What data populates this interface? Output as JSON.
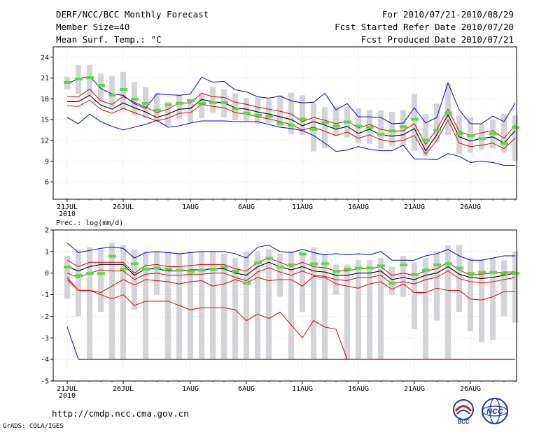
{
  "header": {
    "title": "DERF/NCC/BCC Monthly Forecast",
    "member_size": "Member Size=40",
    "variable": "Mean Surf. Temp.: °C",
    "forecast_period": "For 2010/07/21-2010/08/29",
    "started_date": "Fcst Started Refer Date 2010/07/20",
    "produced_date": "Fcst Produced Date 2010/07/21"
  },
  "footer": {
    "url": "http://cmdp.ncc.cma.gov.cn",
    "credit": "GrADS: COLA/IGES",
    "logo_left_text": "BCC",
    "logo_right_text": "NCC"
  },
  "colors": {
    "box": "#d3d3d8",
    "mean": "#000000",
    "inner_band": "#dd0000",
    "outer_band": "#0000cc",
    "observed": "#55dd44"
  },
  "chart_data": [
    {
      "type": "line",
      "title": "Mean Surf. Temp.: °C",
      "ylim": [
        3.5,
        25.5
      ],
      "yticks": [
        6,
        9,
        12,
        15,
        18,
        21,
        24
      ],
      "xticks": [
        {
          "day": 0,
          "label": "21JUL",
          "sub": "2010"
        },
        {
          "day": 5,
          "label": "26JUL"
        },
        {
          "day": 11,
          "label": "1AUG"
        },
        {
          "day": 16,
          "label": "6AUG"
        },
        {
          "day": 21,
          "label": "11AUG"
        },
        {
          "day": 26,
          "label": "16AUG"
        },
        {
          "day": 31,
          "label": "21AUG"
        },
        {
          "day": 36,
          "label": "26AUG"
        }
      ],
      "box_low": [
        19.3,
        18.7,
        18.5,
        17.6,
        16.8,
        16.5,
        15.6,
        15.2,
        14.7,
        14.1,
        15.1,
        14.6,
        15.2,
        16.0,
        15.3,
        14.9,
        14.8,
        14.4,
        14.5,
        14.0,
        12.9,
        12.8,
        10.4,
        10.9,
        12.6,
        12.4,
        11.6,
        11.5,
        10.8,
        11.2,
        11.1,
        10.5,
        9.7,
        11.8,
        12.8,
        10.0,
        10.2,
        10.6,
        10.8,
        10.2,
        9.0
      ],
      "box_high": [
        21.2,
        22.9,
        22.9,
        21.6,
        21.3,
        21.9,
        20.4,
        19.7,
        18.9,
        17.5,
        18.6,
        17.7,
        18.8,
        19.7,
        19.4,
        18.8,
        18.1,
        18.2,
        17.9,
        18.5,
        18.9,
        18.5,
        17.4,
        16.8,
        16.9,
        16.8,
        16.6,
        16.4,
        16.3,
        16.1,
        16.4,
        18.7,
        15.8,
        17.3,
        20.2,
        15.6,
        15.3,
        14.3,
        14.9,
        15.8,
        15.6
      ],
      "outer_high": [
        20.2,
        20.9,
        21.2,
        19.5,
        18.7,
        18.5,
        17.3,
        16.6,
        18.7,
        18.6,
        18.5,
        18.7,
        21.1,
        20.4,
        20.5,
        19.3,
        19.0,
        18.3,
        18.1,
        18.4,
        17.7,
        17.4,
        17.5,
        18.8,
        16.4,
        17.3,
        15.4,
        15.4,
        15.3,
        14.4,
        14.5,
        16.7,
        14.5,
        15.3,
        20.3,
        16.4,
        14.4,
        14.4,
        15.5,
        14.7,
        17.4
      ],
      "inner_high": [
        18.3,
        18.3,
        19.4,
        17.7,
        17.2,
        18.3,
        17.5,
        16.8,
        16.0,
        16.5,
        17.4,
        17.4,
        18.8,
        18.3,
        18.2,
        17.5,
        17.2,
        16.8,
        16.5,
        16.2,
        15.8,
        14.7,
        15.3,
        14.9,
        14.4,
        14.8,
        13.8,
        14.3,
        13.6,
        13.3,
        13.4,
        14.4,
        11.4,
        13.6,
        16.5,
        13.3,
        12.7,
        13.1,
        13.4,
        12.3,
        14.2
      ],
      "mean": [
        17.6,
        17.6,
        18.5,
        17.1,
        16.5,
        17.4,
        16.7,
        16.1,
        15.3,
        15.8,
        16.5,
        16.6,
        17.9,
        17.6,
        17.4,
        16.7,
        16.5,
        16.1,
        15.8,
        15.4,
        15.0,
        14.1,
        14.7,
        14.2,
        13.6,
        14.0,
        13.0,
        13.6,
        12.8,
        12.6,
        12.8,
        13.7,
        10.5,
        12.8,
        15.7,
        12.5,
        11.9,
        12.3,
        12.5,
        11.6,
        13.4
      ],
      "inner_low": [
        17.0,
        16.9,
        17.8,
        16.5,
        15.9,
        16.6,
        16.0,
        15.4,
        14.8,
        15.2,
        15.9,
        16.0,
        17.2,
        16.9,
        16.7,
        16.0,
        15.8,
        15.4,
        15.1,
        14.7,
        14.3,
        13.5,
        13.9,
        13.3,
        12.7,
        13.2,
        12.3,
        12.8,
        12.1,
        11.8,
        12.0,
        12.7,
        10.0,
        12.0,
        14.9,
        11.6,
        11.1,
        11.3,
        11.6,
        10.8,
        12.3
      ],
      "outer_low": [
        15.3,
        14.4,
        15.8,
        14.7,
        14.0,
        13.5,
        13.9,
        14.3,
        14.9,
        13.9,
        14.1,
        14.5,
        14.8,
        14.8,
        14.8,
        14.7,
        14.7,
        14.7,
        14.3,
        13.9,
        13.7,
        13.4,
        12.7,
        11.6,
        10.4,
        10.6,
        11.1,
        10.7,
        10.5,
        10.5,
        11.3,
        9.3,
        9.3,
        9.2,
        10.1,
        9.7,
        8.8,
        9.0,
        8.8,
        8.4,
        8.4
      ],
      "observed": [
        20.4,
        20.9,
        21.1,
        20.0,
        18.6,
        19.4,
        18.0,
        17.4,
        16.4,
        17.2,
        17.4,
        17.8,
        17.4,
        17.5,
        17.5,
        16.6,
        16.0,
        15.7,
        15.5,
        14.5,
        14.2,
        15.1,
        13.6,
        14.6,
        14.1,
        14.7,
        14.1,
        13.9,
        12.9,
        13.4,
        14.0,
        15.1,
        12.1,
        13.5,
        16.0,
        13.0,
        12.7,
        12.3,
        13.0,
        11.6,
        13.9
      ]
    },
    {
      "type": "line",
      "title": "Prec.: log(mm/d)",
      "ylim": [
        -5,
        2
      ],
      "yticks": [
        -5,
        -4,
        -3,
        -2,
        -1,
        0,
        1,
        2
      ],
      "xticks": [
        {
          "day": 0,
          "label": "21JUL",
          "sub": "2010"
        },
        {
          "day": 5,
          "label": "26JUL"
        },
        {
          "day": 11,
          "label": "1AUG"
        },
        {
          "day": 16,
          "label": "6AUG"
        },
        {
          "day": 21,
          "label": "11AUG"
        },
        {
          "day": 26,
          "label": "16AUG"
        },
        {
          "day": 31,
          "label": "21AUG"
        },
        {
          "day": 36,
          "label": "26AUG"
        }
      ],
      "box_low": [
        -1.2,
        -2.0,
        -4.0,
        -1.8,
        -4.0,
        -4.0,
        -1.7,
        -4.0,
        -1.0,
        -4.0,
        -4.0,
        -4.0,
        -4.0,
        -4.0,
        -4.0,
        -4.0,
        -4.0,
        -4.0,
        -4.0,
        -1.1,
        -4.0,
        -1.8,
        -4.0,
        -4.0,
        -1.0,
        -4.0,
        -4.0,
        -4.0,
        -4.0,
        -1.0,
        -1.1,
        -2.6,
        -4.0,
        -2.2,
        -4.0,
        -1.8,
        -2.7,
        -3.2,
        -3.1,
        -2.0,
        -2.3
      ],
      "box_high": [
        0.8,
        1.1,
        1.2,
        1.1,
        1.4,
        1.3,
        1.1,
        1.0,
        1.0,
        1.0,
        0.9,
        1.0,
        1.0,
        1.0,
        0.9,
        0.7,
        1.0,
        1.0,
        1.1,
        0.9,
        1.0,
        1.0,
        1.2,
        0.9,
        0.4,
        0.4,
        0.6,
        0.6,
        0.7,
        0.3,
        0.8,
        0.5,
        0.7,
        1.0,
        1.3,
        1.3,
        0.7,
        0.6,
        0.7,
        0.6,
        1.0
      ],
      "outer_high": [
        1.4,
        0.95,
        1.05,
        1.15,
        1.2,
        1.15,
        0.7,
        0.95,
        1.0,
        0.95,
        0.9,
        0.95,
        1.0,
        1.0,
        1.0,
        0.9,
        0.7,
        1.2,
        1.3,
        1.0,
        0.95,
        1.1,
        0.95,
        0.85,
        0.9,
        0.85,
        0.9,
        0.85,
        1.0,
        0.6,
        0.6,
        0.6,
        0.8,
        0.9,
        1.1,
        0.8,
        0.6,
        0.6,
        0.7,
        0.8,
        0.8
      ],
      "inner_high": [
        0.6,
        0.3,
        0.5,
        0.5,
        0.5,
        0.5,
        0.0,
        0.35,
        0.4,
        0.3,
        0.3,
        0.35,
        0.4,
        0.4,
        0.4,
        0.2,
        0.1,
        0.5,
        0.7,
        0.5,
        0.3,
        0.5,
        0.3,
        0.25,
        0.1,
        0.1,
        0.2,
        0.2,
        0.3,
        -0.1,
        0.0,
        -0.1,
        0.1,
        0.2,
        0.5,
        0.15,
        -0.1,
        -0.05,
        0.0,
        0.05,
        0.05
      ],
      "mean": [
        0.3,
        0.1,
        0.3,
        0.4,
        0.4,
        0.4,
        -0.1,
        0.2,
        0.2,
        0.1,
        0.1,
        0.15,
        0.15,
        0.2,
        0.2,
        0.0,
        -0.1,
        0.3,
        0.5,
        0.3,
        0.15,
        0.3,
        0.1,
        0.05,
        -0.1,
        -0.1,
        0.0,
        0.0,
        0.1,
        -0.3,
        -0.2,
        -0.3,
        -0.1,
        0.0,
        0.3,
        -0.05,
        -0.2,
        -0.25,
        -0.2,
        -0.1,
        0.0
      ],
      "inner_low": [
        0.0,
        -0.2,
        0.0,
        0.15,
        0.1,
        0.1,
        -0.3,
        -0.05,
        0.0,
        -0.1,
        -0.1,
        -0.05,
        -0.05,
        0.0,
        0.0,
        -0.2,
        -0.35,
        0.05,
        0.25,
        0.05,
        -0.1,
        0.1,
        -0.1,
        -0.15,
        -0.3,
        -0.35,
        -0.2,
        -0.2,
        -0.1,
        -0.5,
        -0.4,
        -0.5,
        -0.3,
        -0.2,
        0.1,
        -0.25,
        -0.4,
        -0.45,
        -0.4,
        -0.3,
        -0.2
      ],
      "outer_low": [
        -0.2,
        -0.8,
        -0.8,
        -1.0,
        -1.2,
        -1.0,
        -1.5,
        -1.3,
        -1.3,
        -1.3,
        -1.5,
        -1.7,
        -1.6,
        -1.6,
        -1.6,
        -1.7,
        -2.2,
        -1.9,
        -2.1,
        -1.8,
        -2.4,
        -3.0,
        -2.2,
        -2.5,
        -2.6,
        -4.0,
        -4.0,
        -4.0,
        -4.0,
        -4.0,
        -4.0,
        -4.0,
        -4.0,
        -4.0,
        -4.0,
        -4.0,
        -4.0,
        -4.0,
        -4.0,
        -4.0,
        -4.0
      ],
      "outer_low_2": [
        -0.3,
        -0.8,
        -0.8,
        -0.9,
        -0.6,
        -0.3,
        -0.55,
        -0.3,
        -0.35,
        -0.4,
        -0.5,
        -0.4,
        -0.35,
        -0.6,
        -0.5,
        -0.3,
        -0.45,
        -0.2,
        -0.35,
        -0.3,
        -0.3,
        -0.6,
        -0.15,
        -0.2,
        -0.5,
        -0.6,
        -0.7,
        -0.5,
        -0.4,
        -0.75,
        -0.5,
        -0.9,
        -0.9,
        -0.7,
        -0.8,
        -0.8,
        -1.2,
        -1.25,
        -1.1,
        -0.85,
        -0.85
      ],
      "outer_low_min": [
        -2.5,
        -4.0,
        -4.0,
        -4.0,
        -4.0,
        -4.0,
        -4.0,
        -4.0,
        -4.0,
        -4.0,
        -4.0,
        -4.0,
        -4.0,
        -4.0,
        -4.0,
        -4.0,
        -4.0,
        -4.0,
        -4.0,
        -4.0,
        -4.0,
        -4.0,
        -4.0,
        -4.0,
        -4.0,
        -4.0,
        -4.0,
        -4.0,
        -4.0,
        -4.0,
        -4.0,
        -4.0,
        -4.0,
        -4.0,
        -4.0,
        -4.0,
        -4.0,
        -4.0,
        -4.0,
        -4.0,
        -4.0
      ],
      "observed": [
        0.3,
        -0.1,
        0.0,
        0.0,
        0.8,
        0.2,
        0.45,
        0.2,
        0.25,
        0.2,
        0.15,
        0.1,
        0.15,
        0.2,
        0.3,
        0.1,
        -0.45,
        0.5,
        0.7,
        0.3,
        0.4,
        0.9,
        0.45,
        0.45,
        0.1,
        0.2,
        0.25,
        0.25,
        0.35,
        -0.45,
        0.4,
        -0.05,
        0.15,
        0.4,
        0.45,
        0.25,
        0.0,
        0.05,
        0.05,
        0.0,
        0.0
      ]
    }
  ]
}
